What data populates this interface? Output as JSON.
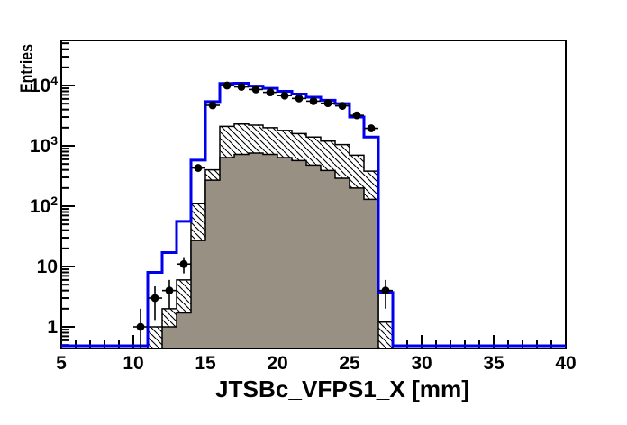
{
  "figure": {
    "background": "#ffffff",
    "frame_color": "#000000"
  },
  "chart_data": {
    "type": "histogram",
    "title": "",
    "xlabel": "JTSBc_VFPS1_X [mm]",
    "ylabel": "Entries",
    "y_scale": "log",
    "grid": false,
    "legend": null,
    "x_range": [
      5,
      40
    ],
    "y_range_log": [
      0.44,
      55000
    ],
    "x_major_ticks": [
      5,
      10,
      15,
      20,
      25,
      30,
      35,
      40
    ],
    "x_minor_tick_step": 1,
    "y_major_ticks": [
      1,
      10,
      100,
      1000,
      10000
    ],
    "bin_start": 5,
    "bin_width": 1,
    "series": [
      {
        "name": "mc-total-outline",
        "type": "step-line",
        "color": "#0000ee",
        "line_width": 3,
        "values": [
          0,
          0,
          0,
          0,
          0,
          0,
          8,
          17,
          56,
          580,
          5400,
          10800,
          10900,
          9800,
          9000,
          8000,
          7200,
          6400,
          5700,
          5000,
          3000,
          1400,
          3.7,
          0,
          0,
          0,
          0,
          0,
          0,
          0,
          0,
          0,
          0,
          0,
          0
        ]
      },
      {
        "name": "mc-hatched",
        "type": "step-fill-hatched",
        "color": "#000000",
        "hatch": "diagonal-backslash",
        "values": [
          0,
          0,
          0,
          0,
          0,
          0,
          1,
          2,
          6,
          110,
          400,
          2100,
          2300,
          2200,
          2000,
          1800,
          1600,
          1400,
          1200,
          1050,
          700,
          380,
          1.2,
          0,
          0,
          0,
          0,
          0,
          0,
          0,
          0,
          0,
          0,
          0,
          0
        ]
      },
      {
        "name": "mc-filled",
        "type": "step-fill",
        "color": "#999084",
        "values": [
          0,
          0,
          0,
          0,
          0,
          0,
          0,
          1,
          1.7,
          27,
          270,
          640,
          720,
          760,
          720,
          640,
          570,
          480,
          390,
          290,
          200,
          130,
          0,
          0,
          0,
          0,
          0,
          0,
          0,
          0,
          0,
          0,
          0,
          0,
          0
        ]
      },
      {
        "name": "data-points",
        "type": "points-errorbars",
        "color": "#000000",
        "marker": "filled-circle",
        "x": [
          10.5,
          11.5,
          12.5,
          13.5,
          14.5,
          15.5,
          16.5,
          17.5,
          18.5,
          19.5,
          20.5,
          21.5,
          22.5,
          23.5,
          24.5,
          25.5,
          26.5,
          27.5
        ],
        "y": [
          1,
          3,
          4,
          11,
          430,
          4700,
          10000,
          9500,
          8600,
          7700,
          6800,
          6100,
          5500,
          5100,
          4600,
          3200,
          1950,
          4
        ],
        "yerr": [
          1,
          1.7,
          2,
          3.3,
          21,
          69,
          100,
          97,
          93,
          88,
          82,
          78,
          74,
          71,
          68,
          57,
          44,
          2
        ],
        "xerr": 0.5
      }
    ]
  }
}
